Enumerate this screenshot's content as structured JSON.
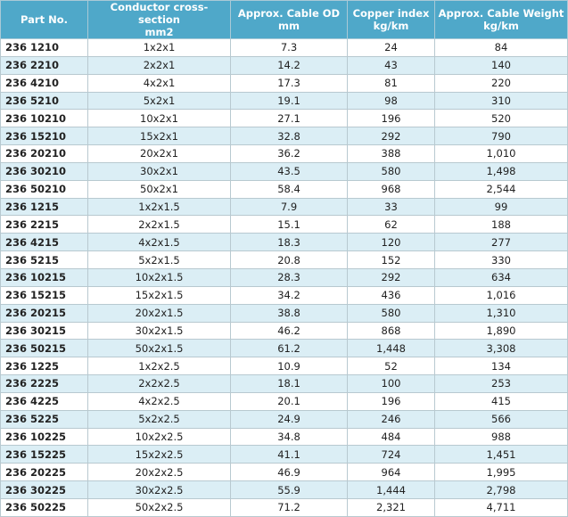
{
  "table": {
    "header": [
      [
        "Part No."
      ],
      [
        "Conductor cross-section",
        "mm2"
      ],
      [
        "Approx. Cable OD",
        "mm"
      ],
      [
        "Copper index",
        "kg/km"
      ],
      [
        "Approx. Cable Weight",
        "kg/km"
      ]
    ],
    "rows": [
      [
        "236 1210",
        "1x2x1",
        "7.3",
        "24",
        "84"
      ],
      [
        "236 2210",
        "2x2x1",
        "14.2",
        "43",
        "140"
      ],
      [
        "236 4210",
        "4x2x1",
        "17.3",
        "81",
        "220"
      ],
      [
        "236 5210",
        "5x2x1",
        "19.1",
        "98",
        "310"
      ],
      [
        "236 10210",
        "10x2x1",
        "27.1",
        "196",
        "520"
      ],
      [
        "236 15210",
        "15x2x1",
        "32.8",
        "292",
        "790"
      ],
      [
        "236 20210",
        "20x2x1",
        "36.2",
        "388",
        "1,010"
      ],
      [
        "236 30210",
        "30x2x1",
        "43.5",
        "580",
        "1,498"
      ],
      [
        "236 50210",
        "50x2x1",
        "58.4",
        "968",
        "2,544"
      ],
      [
        "236 1215",
        "1x2x1.5",
        "7.9",
        "33",
        "99"
      ],
      [
        "236 2215",
        "2x2x1.5",
        "15.1",
        "62",
        "188"
      ],
      [
        "236 4215",
        "4x2x1.5",
        "18.3",
        "120",
        "277"
      ],
      [
        "236 5215",
        "5x2x1.5",
        "20.8",
        "152",
        "330"
      ],
      [
        "236 10215",
        "10x2x1.5",
        "28.3",
        "292",
        "634"
      ],
      [
        "236 15215",
        "15x2x1.5",
        "34.2",
        "436",
        "1,016"
      ],
      [
        "236 20215",
        "20x2x1.5",
        "38.8",
        "580",
        "1,310"
      ],
      [
        "236 30215",
        "30x2x1.5",
        "46.2",
        "868",
        "1,890"
      ],
      [
        "236 50215",
        "50x2x1.5",
        "61.2",
        "1,448",
        "3,308"
      ],
      [
        "236 1225",
        "1x2x2.5",
        "10.9",
        "52",
        "134"
      ],
      [
        "236 2225",
        "2x2x2.5",
        "18.1",
        "100",
        "253"
      ],
      [
        "236 4225",
        "4x2x2.5",
        "20.1",
        "196",
        "415"
      ],
      [
        "236 5225",
        "5x2x2.5",
        "24.9",
        "246",
        "566"
      ],
      [
        "236 10225",
        "10x2x2.5",
        "34.8",
        "484",
        "988"
      ],
      [
        "236 15225",
        "15x2x2.5",
        "41.1",
        "724",
        "1,451"
      ],
      [
        "236 20225",
        "20x2x2.5",
        "46.9",
        "964",
        "1,995"
      ],
      [
        "236 30225",
        "30x2x2.5",
        "55.9",
        "1,444",
        "2,798"
      ],
      [
        "236 50225",
        "50x2x2.5",
        "71.2",
        "2,321",
        "4,711"
      ]
    ]
  }
}
